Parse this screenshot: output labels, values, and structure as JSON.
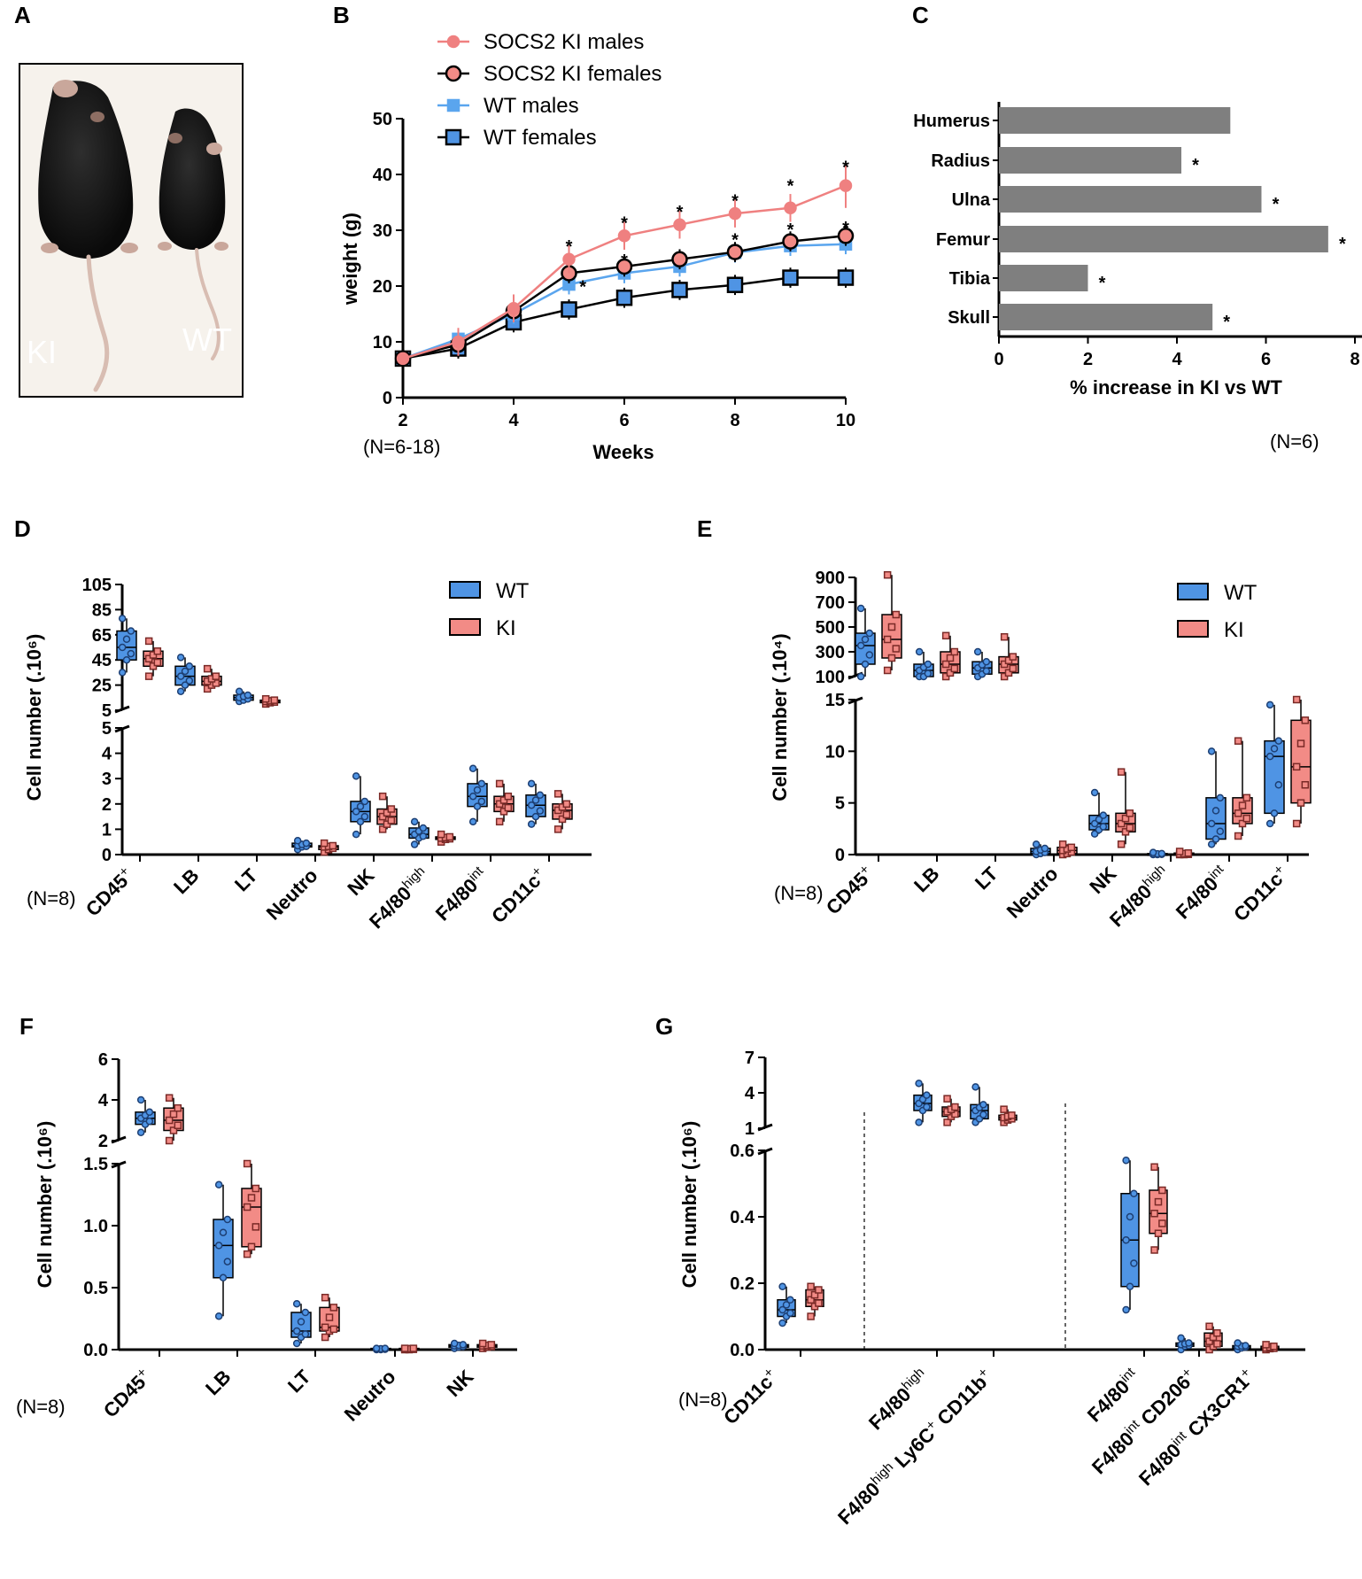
{
  "colors": {
    "wt": "#4f94e4",
    "ki": "#f28b86",
    "bar": "#7f7f7f",
    "male_ki": "#ef8080",
    "male_wt": "#5aa5ee"
  },
  "panel_letters": [
    "A",
    "B",
    "C",
    "D",
    "E",
    "F",
    "G"
  ],
  "panel_a": {
    "labels": [
      "KI",
      "WT"
    ]
  },
  "chart_data": [
    {
      "panel": "B",
      "type": "line",
      "xlabel": "Weeks",
      "ylabel": "weight (g)",
      "note": "(N=6-18)",
      "xlim": [
        2,
        10
      ],
      "ylim": [
        0,
        50
      ],
      "xticks": [
        "2",
        "4",
        "6",
        "8",
        "10"
      ],
      "yticks": [
        "0",
        "10",
        "20",
        "30",
        "40",
        "50"
      ],
      "x": [
        2,
        3,
        4,
        5,
        6,
        7,
        8,
        9,
        10
      ],
      "series": [
        {
          "name": "SOCS2 KI males",
          "values": [
            7,
            10,
            16,
            24.8,
            29,
            31,
            33,
            34,
            38
          ]
        },
        {
          "name": "SOCS2 KI females",
          "values": [
            7,
            9.5,
            15.5,
            22.3,
            23.5,
            24.8,
            26.1,
            28,
            29
          ]
        },
        {
          "name": "WT males",
          "values": [
            7,
            10.5,
            15,
            20.3,
            22.3,
            23.5,
            26,
            27.2,
            27.5
          ]
        },
        {
          "name": "WT females",
          "values": [
            7,
            8.8,
            13.5,
            15.8,
            17.9,
            19.3,
            20.2,
            21.5,
            21.5
          ]
        }
      ],
      "significance": [
        {
          "x": 5,
          "y": 27.3,
          "label": "*"
        },
        {
          "x": 6,
          "y": 31.5,
          "label": "*"
        },
        {
          "x": 7,
          "y": 33.5,
          "label": "*"
        },
        {
          "x": 8,
          "y": 35.5,
          "label": "*"
        },
        {
          "x": 9,
          "y": 38.2,
          "label": "*"
        },
        {
          "x": 10,
          "y": 41.5,
          "label": "*"
        },
        {
          "x": 6,
          "y": 24.8,
          "label": "*"
        },
        {
          "x": 8,
          "y": 28.5,
          "label": "*"
        },
        {
          "x": 9,
          "y": 30.3,
          "label": "*"
        },
        {
          "x": 10,
          "y": 30.6,
          "label": "*"
        },
        {
          "x": 5.25,
          "y": 20.1,
          "label": "*"
        }
      ]
    },
    {
      "panel": "C",
      "type": "bar",
      "xlabel": "% increase in KI  vs WT",
      "note": "(N=6)",
      "xlim": [
        0,
        8
      ],
      "xticks": [
        "0",
        "2",
        "4",
        "6",
        "8"
      ],
      "categories": [
        "Humerus",
        "Radius",
        "Ulna",
        "Femur",
        "Tibia",
        "Skull"
      ],
      "values": [
        5.2,
        4.1,
        5.9,
        7.4,
        2.0,
        4.8
      ],
      "significant": [
        false,
        true,
        true,
        true,
        true,
        true
      ]
    },
    {
      "panel": "D",
      "type": "box",
      "ylabel": "Cell number (.10⁶)",
      "note": "(N=8)",
      "legend": [
        "WT",
        "KI"
      ],
      "categories": [
        "CD45+",
        "LB",
        "LT",
        "Neutro",
        "NK",
        "F4/80high",
        "F4/80int",
        "CD11c+"
      ],
      "upper_ticks": [
        "5",
        "25",
        "45",
        "65",
        "85",
        "105"
      ],
      "lower_ticks": [
        "0",
        "1",
        "2",
        "3",
        "4",
        "5"
      ],
      "series": [
        {
          "name": "WT",
          "boxes": [
            [
              35,
              45,
              55,
              68,
              78
            ],
            [
              20,
              25,
              32,
              40,
              47
            ],
            [
              12,
              13,
              15,
              17,
              20
            ],
            [
              0.2,
              0.3,
              0.35,
              0.45,
              0.55
            ],
            [
              0.8,
              1.3,
              1.7,
              2.1,
              3.1
            ],
            [
              0.4,
              0.65,
              0.8,
              1.05,
              1.3
            ],
            [
              1.3,
              1.9,
              2.3,
              2.8,
              3.4
            ],
            [
              1.2,
              1.5,
              1.95,
              2.35,
              2.8
            ]
          ]
        },
        {
          "name": "KI",
          "boxes": [
            [
              32,
              40,
              46,
              52,
              60
            ],
            [
              22,
              25,
              28,
              32,
              38
            ],
            [
              10,
              11,
              12,
              13,
              14
            ],
            [
              0.1,
              0.2,
              0.3,
              0.35,
              0.45
            ],
            [
              1.0,
              1.2,
              1.5,
              1.8,
              2.3
            ],
            [
              0.5,
              0.6,
              0.65,
              0.7,
              0.8
            ],
            [
              1.3,
              1.7,
              2.0,
              2.3,
              2.8
            ],
            [
              1.0,
              1.4,
              1.75,
              2.0,
              2.4
            ]
          ]
        }
      ]
    },
    {
      "panel": "E",
      "type": "box",
      "ylabel": "Cell number (.10⁴)",
      "note": "(N=8)",
      "legend": [
        "WT",
        "KI"
      ],
      "categories": [
        "CD45+",
        "LB",
        "LT",
        "Neutro",
        "NK",
        "F4/80high",
        "F4/80int",
        "CD11c+"
      ],
      "upper_ticks": [
        "100",
        "300",
        "500",
        "700",
        "900"
      ],
      "lower_ticks": [
        "0",
        "5",
        "10",
        "15"
      ],
      "series": [
        {
          "name": "WT",
          "boxes": [
            [
              100,
              200,
              350,
              450,
              650
            ],
            [
              60,
              100,
              150,
              200,
              300
            ],
            [
              80,
              120,
              170,
              220,
              300
            ],
            [
              0,
              0.1,
              0.3,
              0.6,
              1.0
            ],
            [
              2.0,
              2.4,
              3.0,
              3.8,
              6.0
            ],
            [
              0,
              0,
              0.05,
              0.1,
              0.2
            ],
            [
              1.0,
              1.5,
              3.0,
              5.5,
              10.0
            ],
            [
              3.0,
              4.0,
              9.5,
              11.0,
              14.5
            ]
          ]
        },
        {
          "name": "KI",
          "boxes": [
            [
              150,
              250,
              400,
              600,
              920
            ],
            [
              80,
              130,
              200,
              300,
              430
            ],
            [
              80,
              130,
              200,
              260,
              420
            ],
            [
              0,
              0.1,
              0.4,
              0.7,
              1.0
            ],
            [
              1.0,
              2.2,
              3.0,
              4.0,
              8.0
            ],
            [
              0,
              0,
              0.05,
              0.15,
              0.3
            ],
            [
              1.8,
              3.0,
              4.0,
              5.5,
              11.0
            ],
            [
              3.0,
              5.0,
              8.5,
              13.0,
              15.0
            ]
          ]
        }
      ]
    },
    {
      "panel": "F",
      "type": "box",
      "ylabel": "Cell number (.10⁶)",
      "note": "(N=8)",
      "categories": [
        "CD45+",
        "LB",
        "LT",
        "Neutro",
        "NK"
      ],
      "upper_ticks": [
        "2",
        "4",
        "6"
      ],
      "lower_ticks": [
        "0.0",
        "0.5",
        "1.0",
        "1.5"
      ],
      "series": [
        {
          "name": "WT",
          "boxes": [
            [
              2.4,
              2.8,
              3.1,
              3.4,
              4.0
            ],
            [
              0.27,
              0.58,
              0.84,
              1.05,
              1.33
            ],
            [
              0.05,
              0.1,
              0.15,
              0.3,
              0.37
            ],
            [
              0,
              0,
              0.005,
              0.01,
              0.01
            ],
            [
              0.01,
              0.02,
              0.03,
              0.04,
              0.05
            ]
          ]
        },
        {
          "name": "KI",
          "boxes": [
            [
              2.0,
              2.5,
              3.0,
              3.6,
              4.1
            ],
            [
              0.77,
              0.83,
              1.15,
              1.3,
              1.5
            ],
            [
              0.1,
              0.15,
              0.18,
              0.34,
              0.42
            ],
            [
              0,
              0,
              0.005,
              0.01,
              0.01
            ],
            [
              0.01,
              0.02,
              0.03,
              0.04,
              0.05
            ]
          ]
        }
      ]
    },
    {
      "panel": "G",
      "type": "box",
      "ylabel": "Cell number (.10⁶)",
      "note": "(N=8)",
      "categories": [
        "CD11c+",
        "F4/80high",
        "F4/80high Ly6C+ CD11b+",
        "F4/80int",
        "F4/80int CD206+",
        "F4/80int CX3CR1+"
      ],
      "upper_ticks": [
        "1",
        "4",
        "7"
      ],
      "lower_ticks": [
        "0.0",
        "0.2",
        "0.4",
        "0.6"
      ],
      "series": [
        {
          "name": "WT",
          "boxes": [
            [
              0.08,
              0.1,
              0.12,
              0.15,
              0.19
            ],
            [
              1.5,
              2.5,
              3.1,
              3.8,
              4.8
            ],
            [
              1.5,
              1.8,
              2.5,
              3.0,
              4.5
            ],
            [
              0.12,
              0.19,
              0.33,
              0.47,
              0.57
            ],
            [
              0.0,
              0.01,
              0.015,
              0.02,
              0.035
            ],
            [
              0.0,
              0.005,
              0.01,
              0.012,
              0.02
            ]
          ]
        },
        {
          "name": "KI",
          "boxes": [
            [
              0.1,
              0.13,
              0.15,
              0.18,
              0.19
            ],
            [
              1.5,
              2.0,
              2.4,
              2.8,
              3.5
            ],
            [
              1.5,
              1.7,
              1.9,
              2.1,
              2.6
            ],
            [
              0.3,
              0.35,
              0.41,
              0.48,
              0.55
            ],
            [
              0.0,
              0.01,
              0.025,
              0.05,
              0.07
            ],
            [
              0.0,
              0.003,
              0.005,
              0.01,
              0.015
            ]
          ]
        }
      ]
    }
  ]
}
